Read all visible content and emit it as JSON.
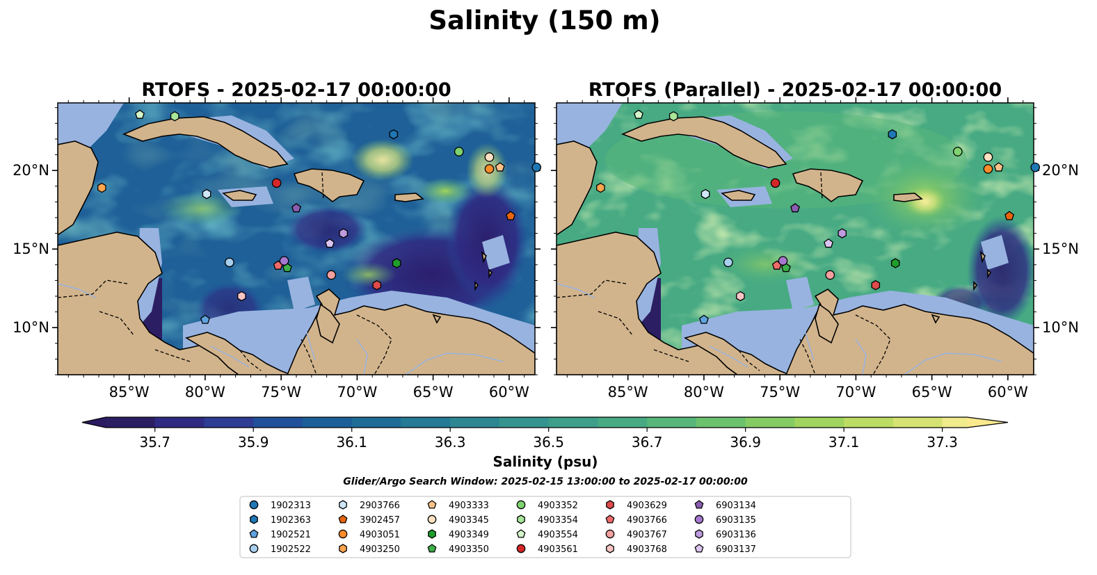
{
  "figure": {
    "title": "Salinity (150 m)",
    "search_window": "Glider/Argo Search Window: 2025-02-15 13:00:00 to 2025-02-17 00:00:00"
  },
  "colors": {
    "land": "#d2b48c",
    "shelf": "#98b3e0",
    "low_extreme": "#2c1a63",
    "high_extreme": "#fbe98e"
  },
  "chart_data": {
    "type": "heatmap",
    "subtype": "map-contourf",
    "panels": [
      {
        "title": "RTOFS - 2025-02-17 00:00:00",
        "dominant_level": "36.1–36.3",
        "fresh_pockets": "eastern Caribbean / Venezuela basin"
      },
      {
        "title": "RTOFS (Parallel) - 2025-02-17 00:00:00",
        "dominant_level": "36.6–36.8",
        "salty_core": "north of Puerto Rico"
      }
    ],
    "map_extent": {
      "lon": [
        -89.7,
        -58.3
      ],
      "lat": [
        7.0,
        24.3
      ]
    },
    "x_ticks": [
      {
        "value": -85,
        "label": "85°W"
      },
      {
        "value": -80,
        "label": "80°W"
      },
      {
        "value": -75,
        "label": "75°W"
      },
      {
        "value": -70,
        "label": "70°W"
      },
      {
        "value": -65,
        "label": "65°W"
      },
      {
        "value": -60,
        "label": "60°W"
      }
    ],
    "y_ticks": [
      {
        "value": 10,
        "label": "10°N"
      },
      {
        "value": 15,
        "label": "15°N"
      },
      {
        "value": 20,
        "label": "20°N"
      }
    ],
    "colorbar": {
      "label": "Salinity (psu)",
      "vmin": 35.6,
      "vmax": 37.35,
      "extend": "both",
      "ticks": [
        "35.7",
        "35.9",
        "36.1",
        "36.3",
        "36.5",
        "36.7",
        "36.9",
        "37.1",
        "37.3"
      ],
      "levels": [
        35.6,
        35.7,
        35.8,
        35.9,
        36.0,
        36.1,
        36.2,
        36.3,
        36.4,
        36.5,
        36.6,
        36.7,
        36.8,
        36.9,
        37.0,
        37.1,
        37.2,
        37.3
      ],
      "colors": [
        "#2c1e63",
        "#2f2b83",
        "#2e3c94",
        "#22509a",
        "#1c5f98",
        "#1e6d97",
        "#257a95",
        "#2d8793",
        "#35948f",
        "#3d9f8a",
        "#47aa83",
        "#57b67a",
        "#6cc16d",
        "#85cb63",
        "#a1d45e",
        "#bcdc63",
        "#d6e372",
        "#f0eb8c"
      ]
    },
    "floats": [
      {
        "id": "1902313",
        "lon": -58.2,
        "lat": 20.2,
        "color": "#1f77b4",
        "marker": "circle"
      },
      {
        "id": "1902363",
        "lon": -67.6,
        "lat": 22.3,
        "color": "#1f77b4",
        "marker": "hexagon"
      },
      {
        "id": "1902521",
        "lon": -80.0,
        "lat": 10.5,
        "color": "#5fa2dd",
        "marker": "pentagon"
      },
      {
        "id": "1902522",
        "lon": -78.4,
        "lat": 14.15,
        "color": "#a9cfee",
        "marker": "circle"
      },
      {
        "id": "2903766",
        "lon": -79.9,
        "lat": 18.5,
        "color": "#cfe7f7",
        "marker": "hexagon"
      },
      {
        "id": "3902457",
        "lon": -59.9,
        "lat": 17.1,
        "color": "#e8650f",
        "marker": "pentagon"
      },
      {
        "id": "4903051",
        "lon": -61.3,
        "lat": 20.1,
        "color": "#ff8c2a",
        "marker": "circle"
      },
      {
        "id": "4903250",
        "lon": -86.8,
        "lat": 18.9,
        "color": "#ffa54f",
        "marker": "hexagon"
      },
      {
        "id": "4903333",
        "lon": -60.6,
        "lat": 20.2,
        "color": "#ffc28a",
        "marker": "pentagon"
      },
      {
        "id": "4903345",
        "lon": -61.3,
        "lat": 20.85,
        "color": "#ffe0c2",
        "marker": "circle"
      },
      {
        "id": "4903349",
        "lon": -67.4,
        "lat": 14.1,
        "color": "#1f9e2c",
        "marker": "hexagon"
      },
      {
        "id": "4903350",
        "lon": -74.6,
        "lat": 13.8,
        "color": "#3cb04a",
        "marker": "pentagon"
      },
      {
        "id": "4903352",
        "lon": -63.3,
        "lat": 21.2,
        "color": "#7fd36f",
        "marker": "circle"
      },
      {
        "id": "4903354",
        "lon": -82.0,
        "lat": 23.45,
        "color": "#a8e69a",
        "marker": "hexagon"
      },
      {
        "id": "4903554",
        "lon": -84.3,
        "lat": 23.55,
        "color": "#d3f5c9",
        "marker": "pentagon"
      },
      {
        "id": "4903561",
        "lon": -75.3,
        "lat": 19.2,
        "color": "#d62728",
        "marker": "circle"
      },
      {
        "id": "4903629",
        "lon": -68.7,
        "lat": 12.7,
        "color": "#e04b4b",
        "marker": "hexagon"
      },
      {
        "id": "4903766",
        "lon": -75.2,
        "lat": 13.95,
        "color": "#f06a6a",
        "marker": "pentagon"
      },
      {
        "id": "4903767",
        "lon": -71.7,
        "lat": 13.35,
        "color": "#f3a0a0",
        "marker": "circle"
      },
      {
        "id": "4903768",
        "lon": -77.6,
        "lat": 12.0,
        "color": "#f8c4c4",
        "marker": "hexagon"
      },
      {
        "id": "6903134",
        "lon": -74.0,
        "lat": 17.6,
        "color": "#8a5db0",
        "marker": "pentagon"
      },
      {
        "id": "6903135",
        "lon": -74.8,
        "lat": 14.25,
        "color": "#a678cf",
        "marker": "circle"
      },
      {
        "id": "6903136",
        "lon": -70.9,
        "lat": 16.0,
        "color": "#bf9be0",
        "marker": "hexagon"
      },
      {
        "id": "6903137",
        "lon": -71.8,
        "lat": 15.35,
        "color": "#dcc4f1",
        "marker": "pentagon"
      }
    ]
  }
}
